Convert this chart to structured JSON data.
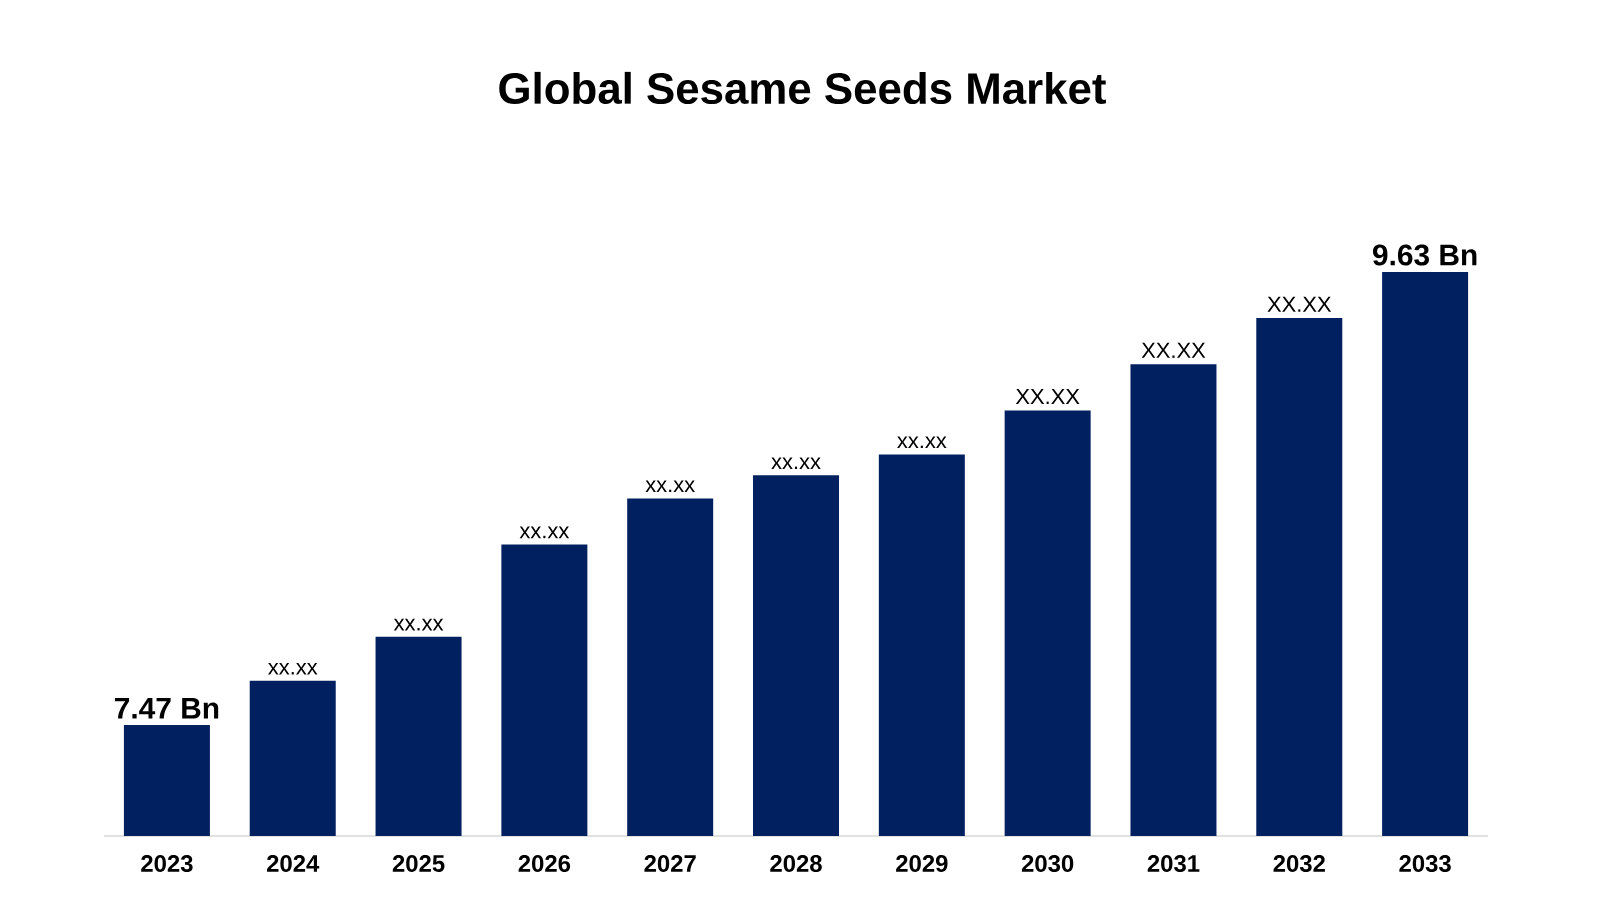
{
  "chart_data": {
    "type": "bar",
    "title": "Global Sesame Seeds Market",
    "categories": [
      "2023",
      "2024",
      "2025",
      "2026",
      "2027",
      "2028",
      "2029",
      "2030",
      "2031",
      "2032",
      "2033"
    ],
    "values": [
      7.47,
      7.68,
      7.89,
      8.33,
      8.55,
      8.66,
      8.76,
      8.97,
      9.19,
      9.41,
      9.63
    ],
    "value_labels": [
      "7.47 Bn",
      "xx.xx",
      "xx.xx",
      "xx.xx",
      "xx.xx",
      "xx.xx",
      "xx.xx",
      "XX.XX",
      "XX.XX",
      "XX.XX",
      "9.63 Bn"
    ],
    "ylim": [
      6.94,
      9.63
    ],
    "tick_labels": "x",
    "color": "#002060"
  }
}
